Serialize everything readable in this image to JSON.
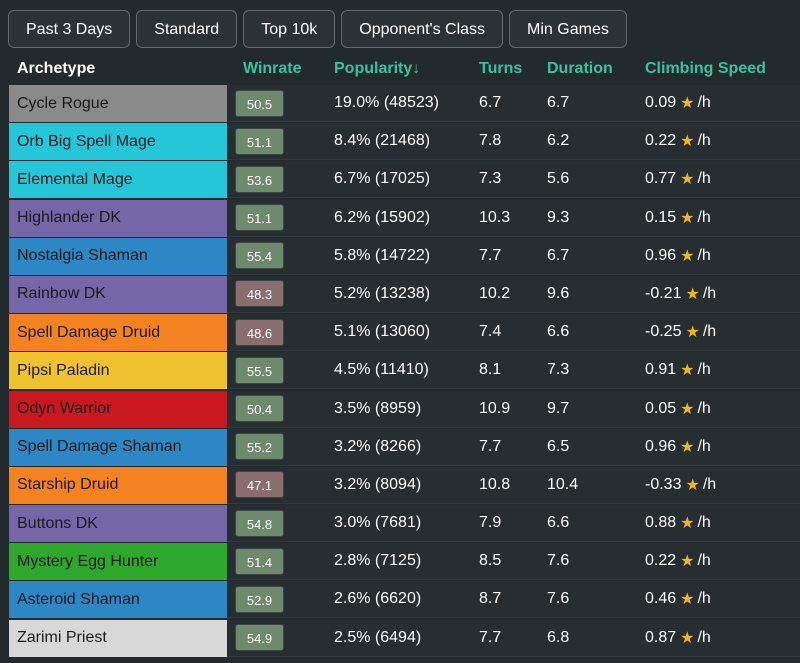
{
  "filters": [
    "Past 3 Days",
    "Standard",
    "Top 10k",
    "Opponent's Class",
    "Min Games"
  ],
  "columns": {
    "archetype": "Archetype",
    "winrate": "Winrate",
    "popularity": "Popularity↓",
    "turns": "Turns",
    "duration": "Duration",
    "climbing": "Climbing Speed"
  },
  "colors": {
    "accent": "#39c2a0",
    "star": "#f2b51c",
    "win_above": "#6e8a6c",
    "win_below": "#8a6e6e"
  },
  "rows": [
    {
      "name": "Cycle Rogue",
      "color": "#8a8a8a",
      "winrate": "50.5",
      "popularity": "19.0% (48523)",
      "turns": "6.7",
      "duration": "6.7",
      "climb": "0.09",
      "unit": "/h"
    },
    {
      "name": "Orb Big Spell Mage",
      "color": "#26c6d9",
      "winrate": "51.1",
      "popularity": "8.4% (21468)",
      "turns": "7.8",
      "duration": "6.2",
      "climb": "0.22",
      "unit": "/h"
    },
    {
      "name": "Elemental Mage",
      "color": "#26c6d9",
      "winrate": "53.6",
      "popularity": "6.7% (17025)",
      "turns": "7.3",
      "duration": "5.6",
      "climb": "0.77",
      "unit": "/h"
    },
    {
      "name": "Highlander DK",
      "color": "#7566a7",
      "winrate": "51.1",
      "popularity": "6.2% (15902)",
      "turns": "10.3",
      "duration": "9.3",
      "climb": "0.15",
      "unit": "/h"
    },
    {
      "name": "Nostalgia Shaman",
      "color": "#2d87c5",
      "winrate": "55.4",
      "popularity": "5.8% (14722)",
      "turns": "7.7",
      "duration": "6.7",
      "climb": "0.96",
      "unit": "/h"
    },
    {
      "name": "Rainbow DK",
      "color": "#7566a7",
      "winrate": "48.3",
      "popularity": "5.2% (13238)",
      "turns": "10.2",
      "duration": "9.6",
      "climb": "-0.21",
      "unit": "/h"
    },
    {
      "name": "Spell Damage Druid",
      "color": "#f58220",
      "winrate": "48.6",
      "popularity": "5.1% (13060)",
      "turns": "7.4",
      "duration": "6.6",
      "climb": "-0.25",
      "unit": "/h"
    },
    {
      "name": "Pipsi Paladin",
      "color": "#f0c230",
      "winrate": "55.5",
      "popularity": "4.5% (11410)",
      "turns": "8.1",
      "duration": "7.3",
      "climb": "0.91",
      "unit": "/h"
    },
    {
      "name": "Odyn Warrior",
      "color": "#c9191e",
      "winrate": "50.4",
      "popularity": "3.5% (8959)",
      "turns": "10.9",
      "duration": "9.7",
      "climb": "0.05",
      "unit": "/h"
    },
    {
      "name": "Spell Damage Shaman",
      "color": "#2d87c5",
      "winrate": "55.2",
      "popularity": "3.2% (8266)",
      "turns": "7.7",
      "duration": "6.5",
      "climb": "0.96",
      "unit": "/h"
    },
    {
      "name": "Starship Druid",
      "color": "#f58220",
      "winrate": "47.1",
      "popularity": "3.2% (8094)",
      "turns": "10.8",
      "duration": "10.4",
      "climb": "-0.33",
      "unit": "/h"
    },
    {
      "name": "Buttons DK",
      "color": "#7566a7",
      "winrate": "54.8",
      "popularity": "3.0% (7681)",
      "turns": "7.9",
      "duration": "6.6",
      "climb": "0.88",
      "unit": "/h"
    },
    {
      "name": "Mystery Egg Hunter",
      "color": "#2ea82c",
      "winrate": "51.4",
      "popularity": "2.8% (7125)",
      "turns": "8.5",
      "duration": "7.6",
      "climb": "0.22",
      "unit": "/h"
    },
    {
      "name": "Asteroid Shaman",
      "color": "#2d87c5",
      "winrate": "52.9",
      "popularity": "2.6% (6620)",
      "turns": "8.7",
      "duration": "7.6",
      "climb": "0.46",
      "unit": "/h"
    },
    {
      "name": "Zarimi Priest",
      "color": "#d8d8d8",
      "winrate": "54.9",
      "popularity": "2.5% (6494)",
      "turns": "7.7",
      "duration": "6.8",
      "climb": "0.87",
      "unit": "/h"
    }
  ]
}
